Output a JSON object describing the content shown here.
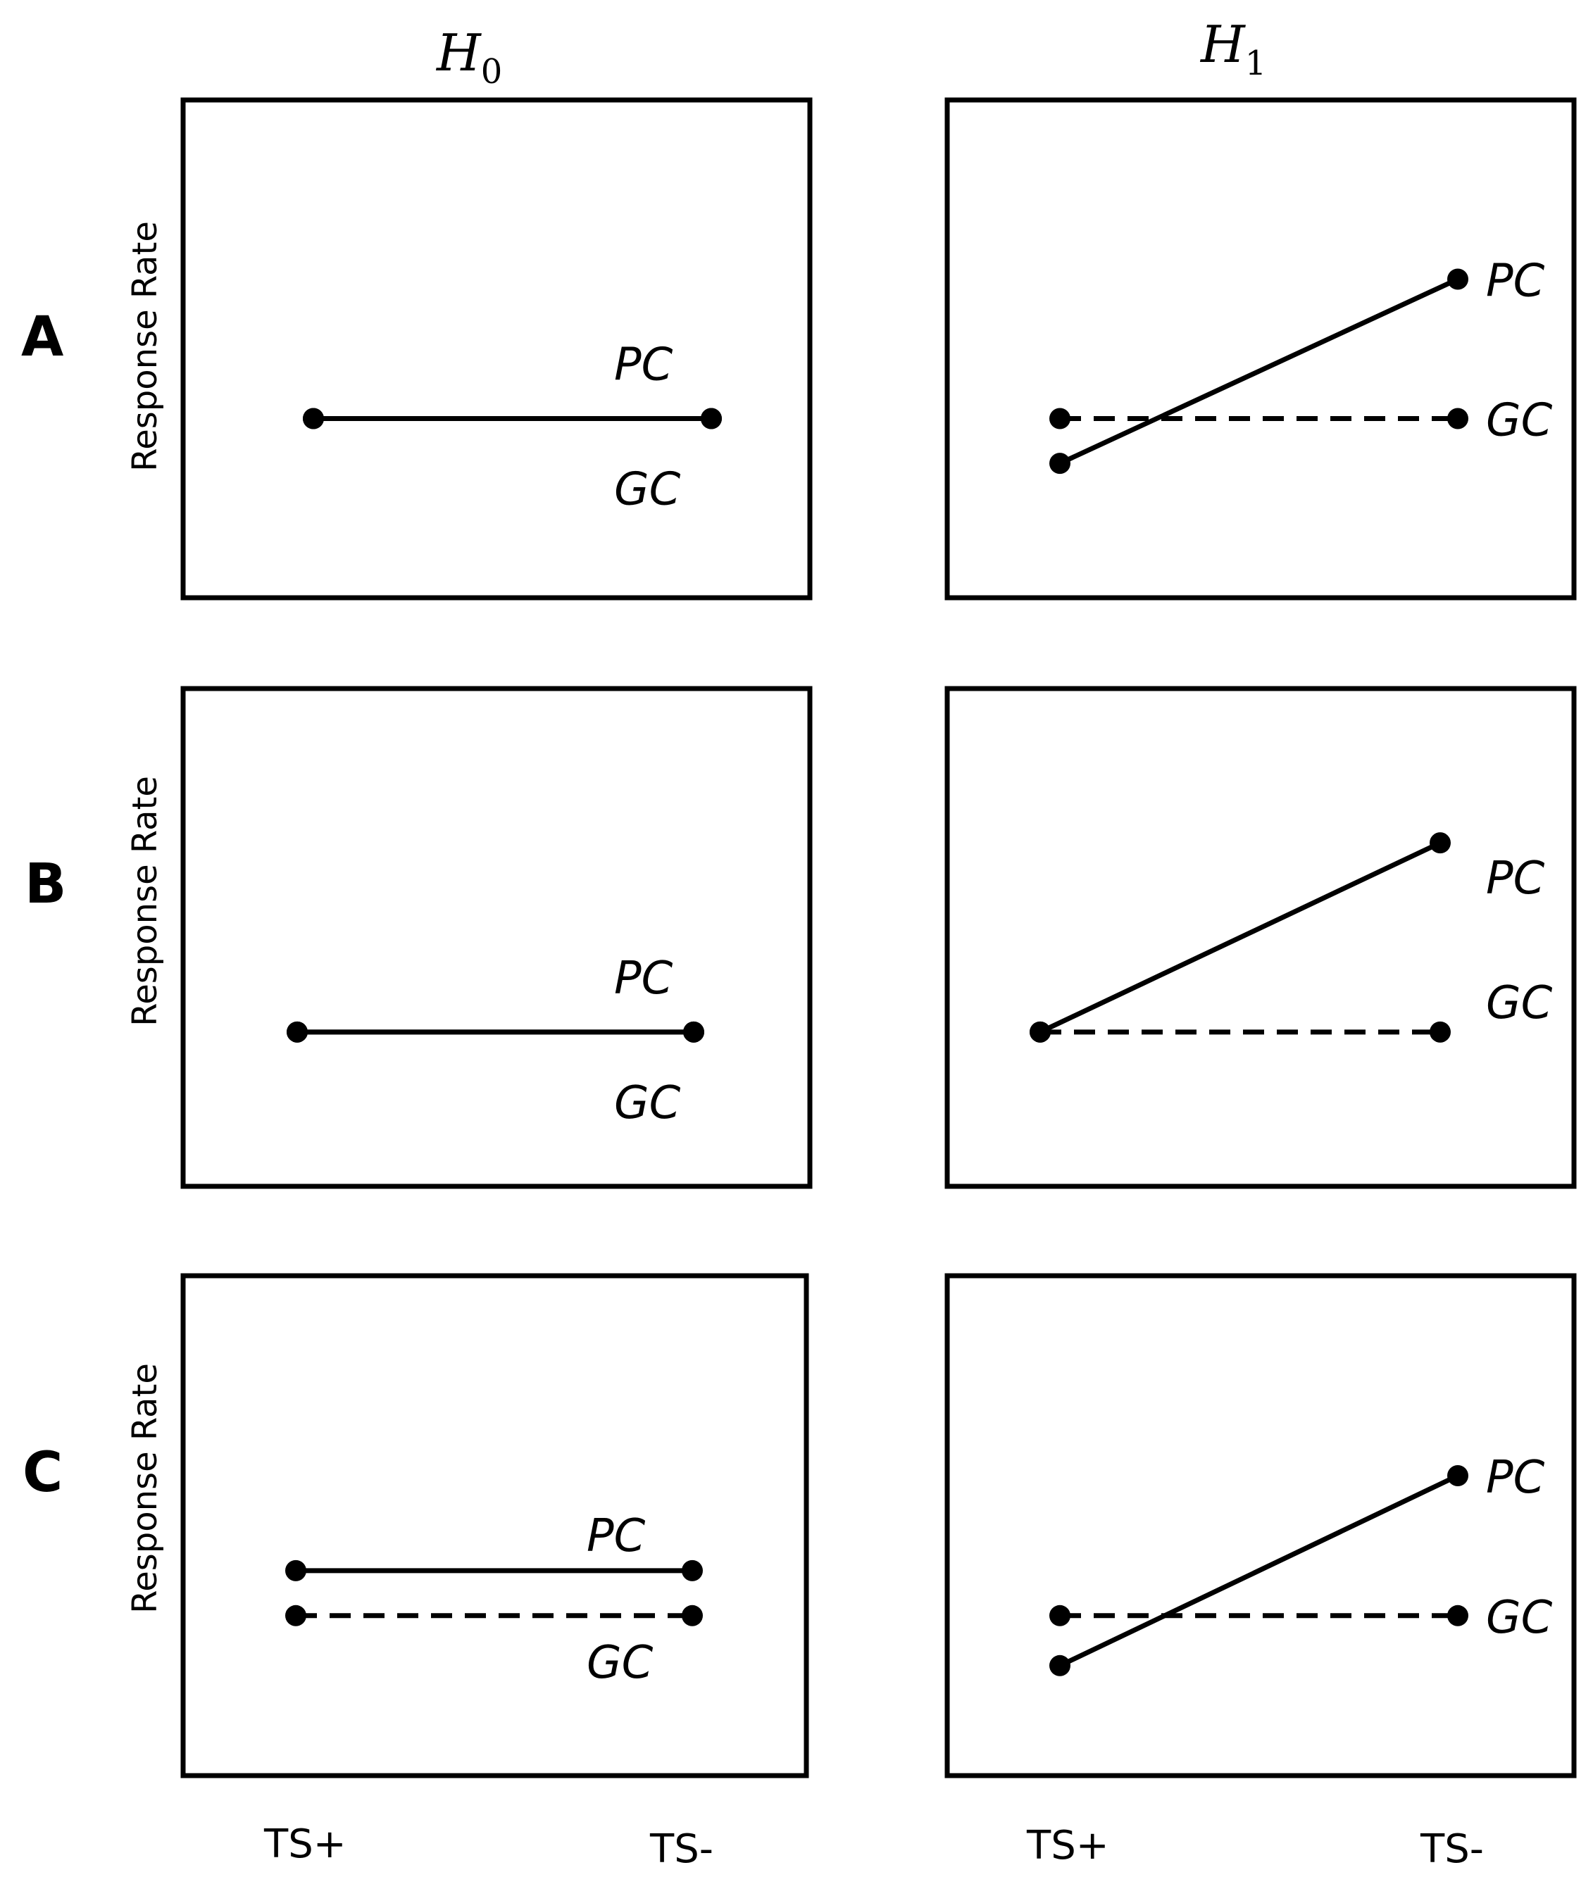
{
  "figure": {
    "column_headers": [
      {
        "main": "H",
        "sub": "0"
      },
      {
        "main": "H",
        "sub": "1"
      }
    ],
    "row_labels": [
      "A",
      "B",
      "C"
    ],
    "y_axis_label": "Response Rate",
    "x_tick_labels": [
      "TS+",
      "TS-"
    ]
  },
  "chart_data": [
    {
      "type": "line",
      "row": "A",
      "hypothesis": "H0",
      "x": [
        "TS+",
        "TS-"
      ],
      "ylim": [
        0,
        1
      ],
      "series": [
        {
          "name": "PC",
          "style": "solid",
          "values": [
            0.36,
            0.36
          ]
        },
        {
          "name": "GC",
          "style": "solid",
          "values": [
            0.36,
            0.36
          ]
        }
      ],
      "annotations": [
        "PC",
        "GC"
      ]
    },
    {
      "type": "line",
      "row": "A",
      "hypothesis": "H1",
      "x": [
        "TS+",
        "TS-"
      ],
      "ylim": [
        0,
        1
      ],
      "series": [
        {
          "name": "PC",
          "style": "solid",
          "values": [
            0.27,
            0.64
          ]
        },
        {
          "name": "GC",
          "style": "dashed",
          "values": [
            0.36,
            0.36
          ]
        }
      ],
      "annotations": [
        "PC",
        "GC"
      ]
    },
    {
      "type": "line",
      "row": "B",
      "hypothesis": "H0",
      "x": [
        "TS+",
        "TS-"
      ],
      "ylim": [
        0,
        1
      ],
      "series": [
        {
          "name": "PC",
          "style": "solid",
          "values": [
            0.31,
            0.31
          ]
        },
        {
          "name": "GC",
          "style": "solid",
          "values": [
            0.31,
            0.31
          ]
        }
      ],
      "annotations": [
        "PC",
        "GC"
      ]
    },
    {
      "type": "line",
      "row": "B",
      "hypothesis": "H1",
      "x": [
        "TS+",
        "TS-"
      ],
      "ylim": [
        0,
        1
      ],
      "series": [
        {
          "name": "PC",
          "style": "solid",
          "values": [
            0.31,
            0.69
          ]
        },
        {
          "name": "GC",
          "style": "dashed",
          "values": [
            0.31,
            0.31
          ]
        }
      ],
      "annotations": [
        "PC",
        "GC"
      ]
    },
    {
      "type": "line",
      "row": "C",
      "hypothesis": "H0",
      "x": [
        "TS+",
        "TS-"
      ],
      "ylim": [
        0,
        1
      ],
      "series": [
        {
          "name": "PC",
          "style": "solid",
          "values": [
            0.41,
            0.41
          ]
        },
        {
          "name": "GC",
          "style": "dashed",
          "values": [
            0.32,
            0.32
          ]
        }
      ],
      "annotations": [
        "PC",
        "GC"
      ]
    },
    {
      "type": "line",
      "row": "C",
      "hypothesis": "H1",
      "x": [
        "TS+",
        "TS-"
      ],
      "ylim": [
        0,
        1
      ],
      "series": [
        {
          "name": "PC",
          "style": "solid",
          "values": [
            0.22,
            0.6
          ]
        },
        {
          "name": "GC",
          "style": "dashed",
          "values": [
            0.32,
            0.32
          ]
        }
      ],
      "annotations": [
        "PC",
        "GC"
      ]
    }
  ]
}
